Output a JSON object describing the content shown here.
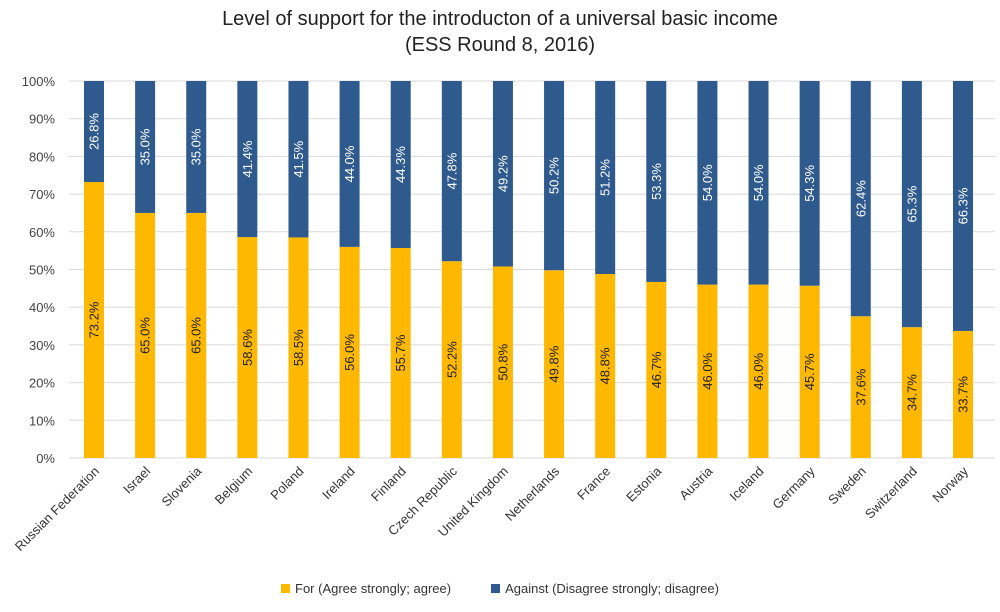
{
  "chart_data": {
    "type": "bar",
    "stacked": true,
    "title": "Level of support for the introducton of a universal basic income",
    "subtitle": "(ESS Round 8, 2016)",
    "xlabel": "",
    "ylabel": "",
    "ylim": [
      0,
      100
    ],
    "y_ticks": [
      "0%",
      "10%",
      "20%",
      "30%",
      "40%",
      "50%",
      "60%",
      "70%",
      "80%",
      "90%",
      "100%"
    ],
    "grid": true,
    "legend_position": "bottom",
    "categories": [
      "Russian Federation",
      "Israel",
      "Slovenia",
      "Belgium",
      "Poland",
      "Ireland",
      "Finland",
      "Czech Republic",
      "United Kingdom",
      "Netherlands",
      "France",
      "Estonia",
      "Austria",
      "Iceland",
      "Germany",
      "Sweden",
      "Switzerland",
      "Norway"
    ],
    "series": [
      {
        "name": "For (Agree strongly; agree)",
        "color": "#FFB800",
        "values": [
          73.2,
          65.0,
          65.0,
          58.6,
          58.5,
          56.0,
          55.7,
          52.2,
          50.8,
          49.8,
          48.8,
          46.7,
          46.0,
          46.0,
          45.7,
          37.6,
          34.7,
          33.7
        ]
      },
      {
        "name": "Against (Disagree strongly; disagree)",
        "color": "#2F5A8E",
        "values": [
          26.8,
          35.0,
          35.0,
          41.4,
          41.5,
          44.0,
          44.3,
          47.8,
          49.2,
          50.2,
          51.2,
          53.3,
          54.0,
          54.0,
          54.3,
          62.4,
          65.3,
          66.3
        ]
      }
    ]
  }
}
